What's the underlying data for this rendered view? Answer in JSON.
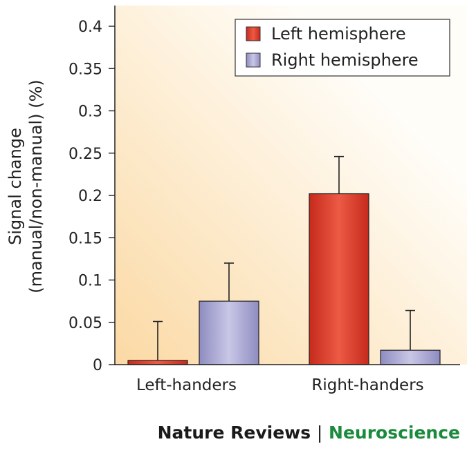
{
  "chart_data": {
    "type": "bar",
    "categories": [
      "Left-handers",
      "Right-handers"
    ],
    "series": [
      {
        "name": "Left hemisphere",
        "values": [
          0.005,
          0.202
        ],
        "errors": [
          0.046,
          0.044
        ],
        "color": "#d63a2a"
      },
      {
        "name": "Right hemisphere",
        "values": [
          0.075,
          0.017
        ],
        "errors": [
          0.045,
          0.047
        ],
        "color": "#a6a4d0"
      }
    ],
    "ylabel_line1": "Signal change",
    "ylabel_line2": "(manual/non-manual) (%)",
    "ylim": [
      0,
      0.4
    ],
    "yticks": [
      0,
      0.05,
      0.1,
      0.15,
      0.2,
      0.25,
      0.3,
      0.35,
      0.4
    ],
    "ytick_labels": [
      "0",
      "0.05",
      "0.1",
      "0.15",
      "0.2",
      "0.25",
      "0.3",
      "0.35",
      "0.4"
    ],
    "legend_position": "top-right",
    "background_gradient": [
      "#fbd9a4",
      "#fffdf8"
    ],
    "grid": false
  },
  "credit": {
    "journal": "Nature Reviews",
    "separator": "|",
    "section": "Neuroscience"
  }
}
